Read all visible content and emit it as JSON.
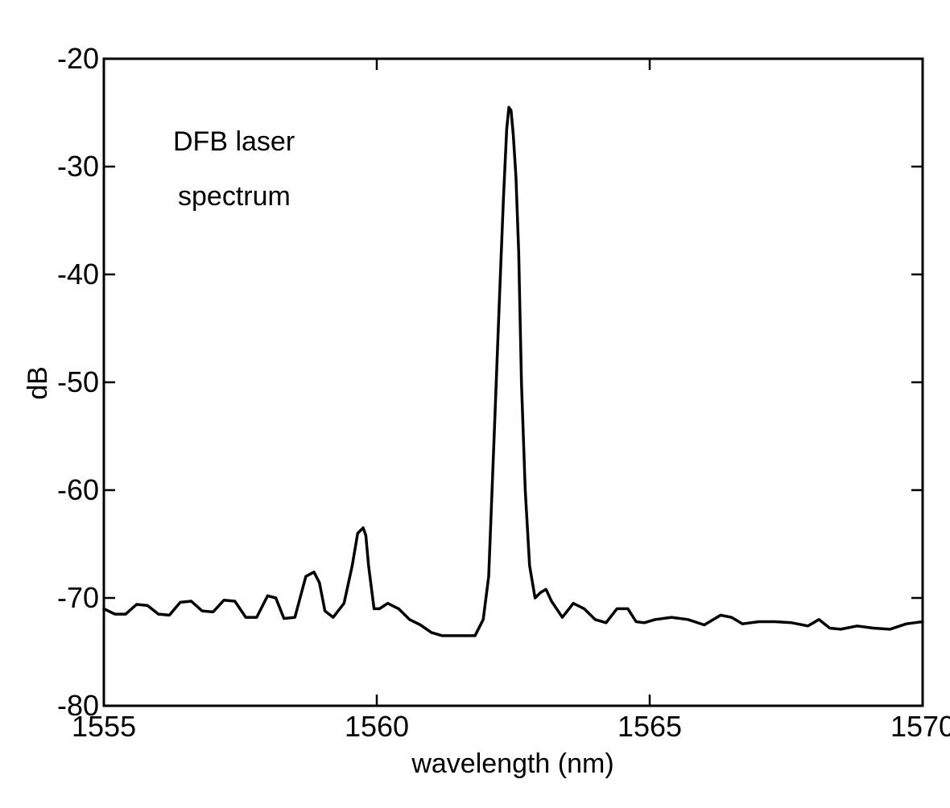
{
  "chart_data": {
    "type": "line",
    "title": "",
    "xlabel": "wavelength (nm)",
    "ylabel": "dB",
    "xlim": [
      1555,
      1570
    ],
    "ylim": [
      -80,
      -20
    ],
    "xticks": [
      1555,
      1560,
      1565,
      1570
    ],
    "yticks": [
      -80,
      -70,
      -60,
      -50,
      -40,
      -30,
      -20
    ],
    "grid": false,
    "annotations": [
      "DFB laser",
      "spectrum"
    ],
    "series": [
      {
        "color": "#000000",
        "x": [
          1555.0,
          1555.2,
          1555.4,
          1555.6,
          1555.8,
          1556.0,
          1556.2,
          1556.4,
          1556.6,
          1556.8,
          1557.0,
          1557.2,
          1557.4,
          1557.6,
          1557.8,
          1558.0,
          1558.15,
          1558.3,
          1558.5,
          1558.7,
          1558.85,
          1558.95,
          1559.05,
          1559.2,
          1559.4,
          1559.55,
          1559.65,
          1559.75,
          1559.8,
          1559.85,
          1559.95,
          1560.05,
          1560.2,
          1560.4,
          1560.6,
          1560.8,
          1561.0,
          1561.2,
          1561.4,
          1561.6,
          1561.8,
          1561.95,
          1562.05,
          1562.15,
          1562.25,
          1562.32,
          1562.38,
          1562.42,
          1562.46,
          1562.5,
          1562.55,
          1562.6,
          1562.65,
          1562.72,
          1562.8,
          1562.9,
          1563.0,
          1563.1,
          1563.2,
          1563.4,
          1563.6,
          1563.8,
          1564.0,
          1564.2,
          1564.4,
          1564.6,
          1564.75,
          1564.9,
          1565.1,
          1565.4,
          1565.7,
          1566.0,
          1566.3,
          1566.5,
          1566.7,
          1567.0,
          1567.3,
          1567.6,
          1567.9,
          1568.1,
          1568.3,
          1568.5,
          1568.8,
          1569.1,
          1569.4,
          1569.7,
          1570.0
        ],
        "y": [
          -71.0,
          -71.5,
          -71.5,
          -70.6,
          -70.7,
          -71.5,
          -71.6,
          -70.4,
          -70.3,
          -71.2,
          -71.3,
          -70.2,
          -70.3,
          -71.8,
          -71.8,
          -69.8,
          -70.0,
          -71.9,
          -71.8,
          -68.0,
          -67.6,
          -68.6,
          -71.2,
          -71.8,
          -70.5,
          -67.0,
          -64.0,
          -63.5,
          -64.2,
          -67.0,
          -71.0,
          -71.0,
          -70.5,
          -71.0,
          -72.0,
          -72.5,
          -73.2,
          -73.5,
          -73.5,
          -73.5,
          -73.5,
          -72.0,
          -68.0,
          -55.0,
          -42.0,
          -33.0,
          -26.5,
          -24.5,
          -24.8,
          -27.0,
          -31.0,
          -38.0,
          -50.0,
          -60.0,
          -67.0,
          -70.0,
          -69.5,
          -69.2,
          -70.3,
          -71.8,
          -70.5,
          -71.0,
          -72.0,
          -72.3,
          -71.0,
          -71.0,
          -72.2,
          -72.3,
          -72.0,
          -71.8,
          -72.0,
          -72.5,
          -71.6,
          -71.8,
          -72.4,
          -72.2,
          -72.2,
          -72.3,
          -72.6,
          -72.0,
          -72.8,
          -72.9,
          -72.6,
          -72.8,
          -72.9,
          -72.4,
          -72.2
        ]
      }
    ]
  }
}
